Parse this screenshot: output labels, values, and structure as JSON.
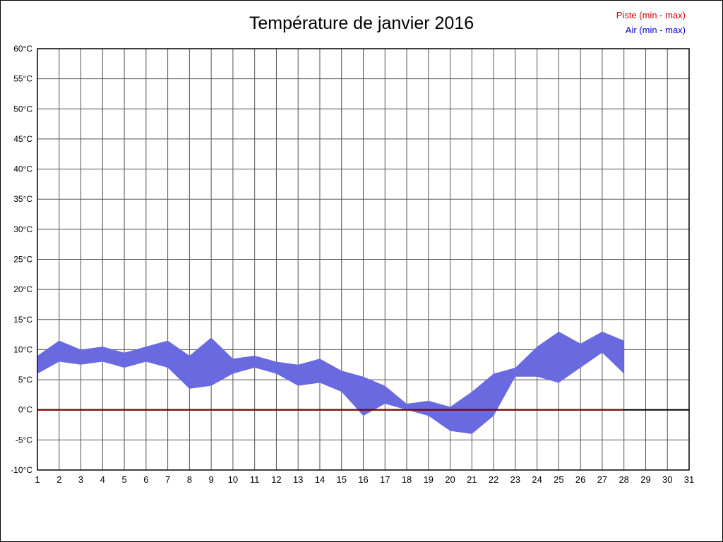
{
  "legend": {
    "piste": "Piste (min - max)",
    "air": "Air (min - max)"
  },
  "chart_data": {
    "type": "area",
    "title": "Température de janvier 2016",
    "xlabel": "",
    "ylabel": "",
    "xlim": [
      1,
      31
    ],
    "ylim": [
      -10,
      60
    ],
    "ytick_step": 5,
    "ytick_suffix": "°C",
    "grid": true,
    "legend_position": "top-right",
    "x": [
      1,
      2,
      3,
      4,
      5,
      6,
      7,
      8,
      9,
      10,
      11,
      12,
      13,
      14,
      15,
      16,
      17,
      18,
      19,
      20,
      21,
      22,
      23,
      24,
      25,
      26,
      27,
      28
    ],
    "series": [
      {
        "name": "Air max",
        "values": [
          9,
          11.5,
          10,
          10.5,
          9.5,
          10.5,
          11.5,
          9,
          12,
          8.5,
          9,
          8,
          7.5,
          8.5,
          6.5,
          5.5,
          4,
          1,
          1.5,
          0.5,
          3,
          6,
          7,
          10.5,
          13,
          11,
          13,
          11.5
        ]
      },
      {
        "name": "Air min",
        "values": [
          6,
          8,
          7.5,
          8,
          7,
          8,
          7,
          3.5,
          4,
          6,
          7,
          6,
          4,
          4.5,
          3,
          -1,
          1,
          0,
          -1,
          -3.5,
          -4,
          -1,
          5.5,
          5.5,
          4.5,
          7,
          9.5,
          6
        ]
      }
    ],
    "piste": {
      "day_start": 1,
      "day_end": 28,
      "min": 0,
      "max": 0
    },
    "colors": {
      "air_band": "#6a6ae0",
      "piste_line": "#8b0000",
      "zero_line": "#000000",
      "grid": "#555555",
      "plot_border": "#000000",
      "legend_piste": "#cc0000",
      "legend_air": "#0000cc"
    }
  }
}
